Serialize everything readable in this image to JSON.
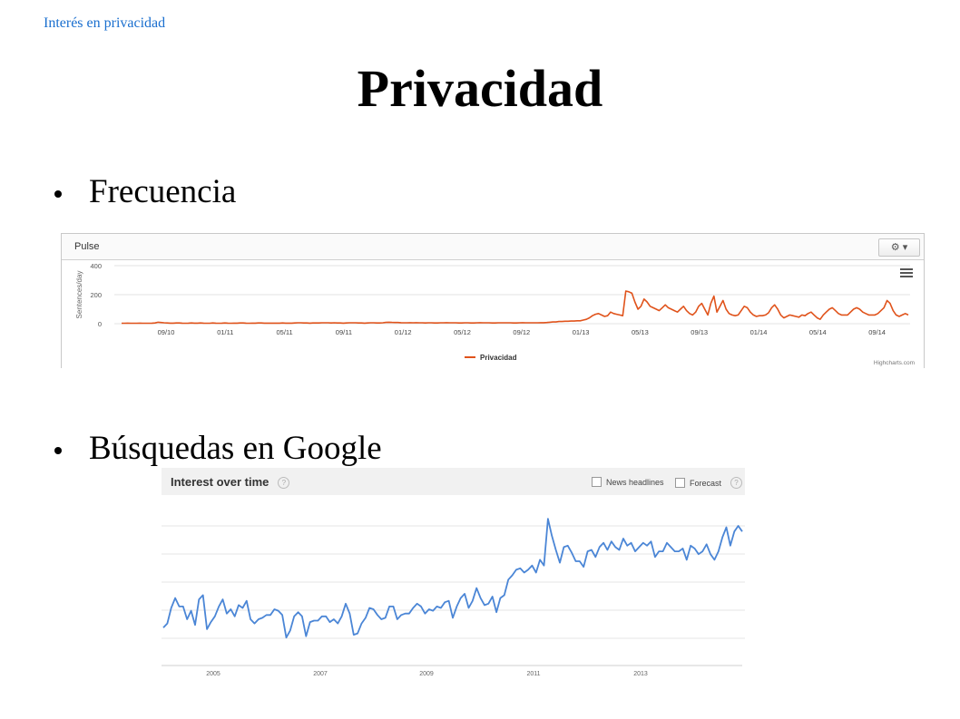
{
  "breadcrumb": "Interés en privacidad",
  "title": "Privacidad",
  "bullets": [
    "Frecuencia",
    "Búsquedas en Google"
  ],
  "chart_data": [
    {
      "type": "line",
      "panel_title": "Pulse",
      "ylabel": "Sentences/day",
      "ylim": [
        0,
        400
      ],
      "yticks": [
        "400",
        "200",
        "0"
      ],
      "xticks": [
        "09/10",
        "01/11",
        "05/11",
        "09/11",
        "01/12",
        "05/12",
        "09/12",
        "01/13",
        "05/13",
        "09/13",
        "01/14",
        "05/14",
        "09/14"
      ],
      "legend_position": "bottom-center",
      "credit": "Highcharts.com",
      "grid": true,
      "series": [
        {
          "name": "Privacidad",
          "color": "#e0531b",
          "x_start": "2010-07",
          "x_end": "2014-10",
          "values": [
            3,
            3,
            4,
            3,
            3,
            3,
            4,
            3,
            3,
            3,
            4,
            5,
            10,
            8,
            6,
            5,
            4,
            4,
            5,
            5,
            4,
            3,
            4,
            5,
            4,
            4,
            5,
            4,
            3,
            3,
            5,
            4,
            3,
            4,
            5,
            4,
            3,
            4,
            4,
            5,
            5,
            4,
            3,
            4,
            4,
            5,
            5,
            4,
            4,
            4,
            4,
            4,
            4,
            5,
            4,
            4,
            4,
            5,
            6,
            6,
            5,
            5,
            4,
            5,
            5,
            5,
            6,
            6,
            6,
            5,
            6,
            5,
            5,
            4,
            5,
            6,
            6,
            6,
            5,
            5,
            4,
            5,
            6,
            6,
            5,
            5,
            6,
            9,
            10,
            9,
            8,
            8,
            7,
            6,
            6,
            7,
            6,
            7,
            6,
            6,
            5,
            6,
            6,
            5,
            5,
            6,
            6,
            7,
            6,
            6,
            6,
            5,
            5,
            6,
            6,
            5,
            5,
            6,
            7,
            6,
            6,
            6,
            5,
            5,
            6,
            6,
            6,
            6,
            6,
            5,
            5,
            6,
            7,
            6,
            6,
            6,
            6,
            6,
            7,
            7,
            8,
            10,
            12,
            12,
            15,
            15,
            17,
            17,
            18,
            18,
            20,
            20,
            25,
            30,
            40,
            55,
            65,
            70,
            60,
            50,
            55,
            80,
            70,
            65,
            60,
            55,
            225,
            220,
            210,
            150,
            100,
            120,
            170,
            150,
            120,
            110,
            100,
            90,
            110,
            130,
            110,
            100,
            90,
            80,
            100,
            120,
            90,
            70,
            60,
            80,
            120,
            140,
            100,
            60,
            140,
            190,
            80,
            120,
            160,
            100,
            70,
            60,
            55,
            60,
            90,
            120,
            110,
            80,
            60,
            50,
            55,
            55,
            60,
            75,
            110,
            130,
            100,
            60,
            40,
            50,
            60,
            55,
            50,
            45,
            60,
            55,
            70,
            80,
            60,
            40,
            30,
            60,
            80,
            100,
            110,
            90,
            70,
            60,
            60,
            60,
            80,
            100,
            110,
            100,
            80,
            70,
            60,
            60,
            60,
            70,
            90,
            110,
            160,
            140,
            90,
            60,
            50,
            60,
            70,
            60
          ]
        }
      ]
    },
    {
      "type": "line",
      "panel_title": "Interest over time",
      "checkbox_news": "News headlines",
      "checkbox_forecast": "Forecast",
      "xticks": [
        "2005",
        "2007",
        "2009",
        "2011",
        "2013"
      ],
      "x_start": "2004-01",
      "x_end": "2014-10",
      "ylim": [
        0,
        100
      ],
      "grid": true,
      "series": [
        {
          "color": "#4b86d6",
          "values": [
            28,
            31,
            42,
            49,
            43,
            43,
            34,
            40,
            30,
            48,
            51,
            27,
            32,
            36,
            43,
            48,
            38,
            41,
            36,
            44,
            42,
            47,
            34,
            31,
            34,
            35,
            37,
            37,
            41,
            40,
            37,
            21,
            26,
            36,
            39,
            36,
            22,
            32,
            33,
            33,
            36,
            36,
            32,
            34,
            31,
            36,
            45,
            38,
            23,
            24,
            31,
            35,
            42,
            41,
            37,
            34,
            35,
            43,
            43,
            34,
            37,
            38,
            38,
            42,
            45,
            43,
            38,
            41,
            40,
            43,
            42,
            46,
            47,
            35,
            43,
            49,
            52,
            42,
            47,
            56,
            49,
            44,
            45,
            50,
            39,
            49,
            51,
            62,
            65,
            69,
            70,
            67,
            69,
            72,
            67,
            76,
            72,
            105,
            93,
            83,
            74,
            85,
            86,
            81,
            75,
            75,
            71,
            82,
            83,
            78,
            85,
            88,
            83,
            89,
            85,
            83,
            91,
            86,
            88,
            82,
            85,
            88,
            86,
            89,
            78,
            82,
            82,
            88,
            85,
            82,
            82,
            84,
            76,
            86,
            84,
            80,
            82,
            87,
            80,
            76,
            82,
            92,
            99,
            86,
            96,
            100,
            96
          ]
        }
      ]
    }
  ]
}
